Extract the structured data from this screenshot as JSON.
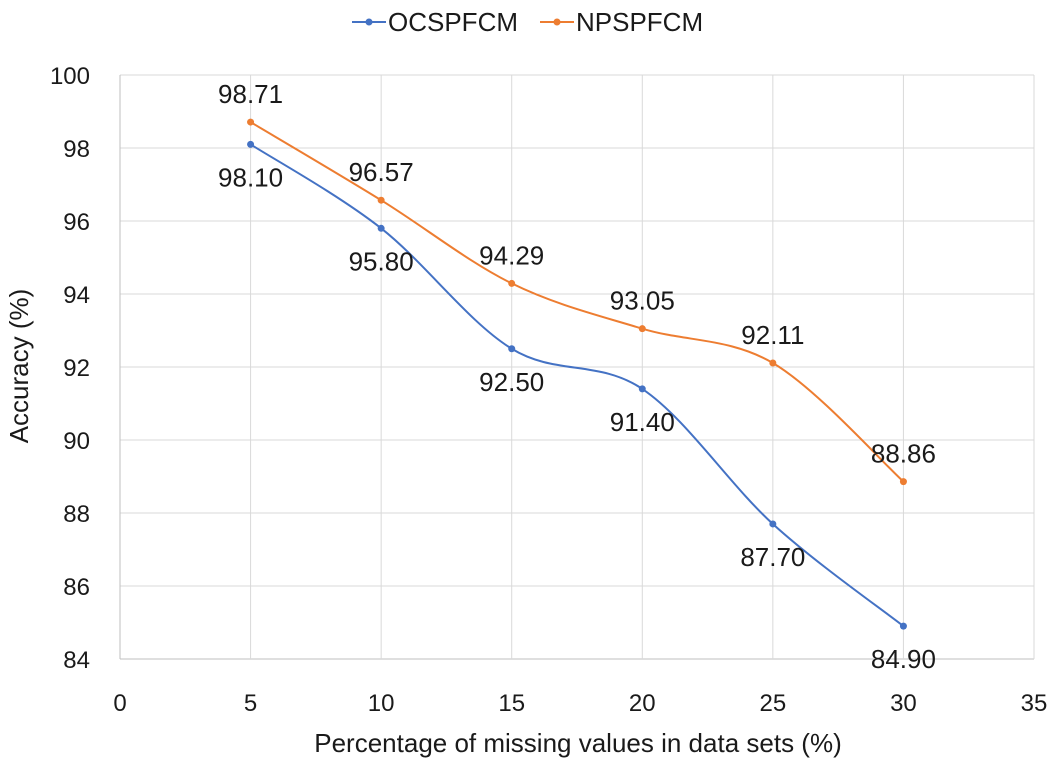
{
  "chart_data": {
    "type": "line",
    "title": "",
    "xlabel": "Percentage of missing values in data sets (%)",
    "ylabel": "Accuracy (%)",
    "xlim": [
      0,
      35
    ],
    "ylim": [
      84,
      100
    ],
    "xticks": [
      0,
      5,
      10,
      15,
      20,
      25,
      30,
      35
    ],
    "yticks": [
      84,
      86,
      88,
      90,
      92,
      94,
      96,
      98,
      100
    ],
    "grid": true,
    "smooth": true,
    "legend": {
      "position": "top-center"
    },
    "x": [
      5,
      10,
      15,
      20,
      25,
      30
    ],
    "series": [
      {
        "name": "OCSPFCM",
        "color": "#4472c4",
        "values": [
          98.1,
          95.8,
          92.5,
          91.4,
          87.7,
          84.9
        ],
        "labels": [
          "98.10",
          "95.80",
          "92.50",
          "91.40",
          "87.70",
          "84.90"
        ],
        "label_position": "below"
      },
      {
        "name": "NPSPFCM",
        "color": "#ed7d31",
        "values": [
          98.71,
          96.57,
          94.29,
          93.05,
          92.11,
          88.86
        ],
        "labels": [
          "98.71",
          "96.57",
          "94.29",
          "93.05",
          "92.11",
          "88.86"
        ],
        "label_position": "above"
      }
    ]
  }
}
